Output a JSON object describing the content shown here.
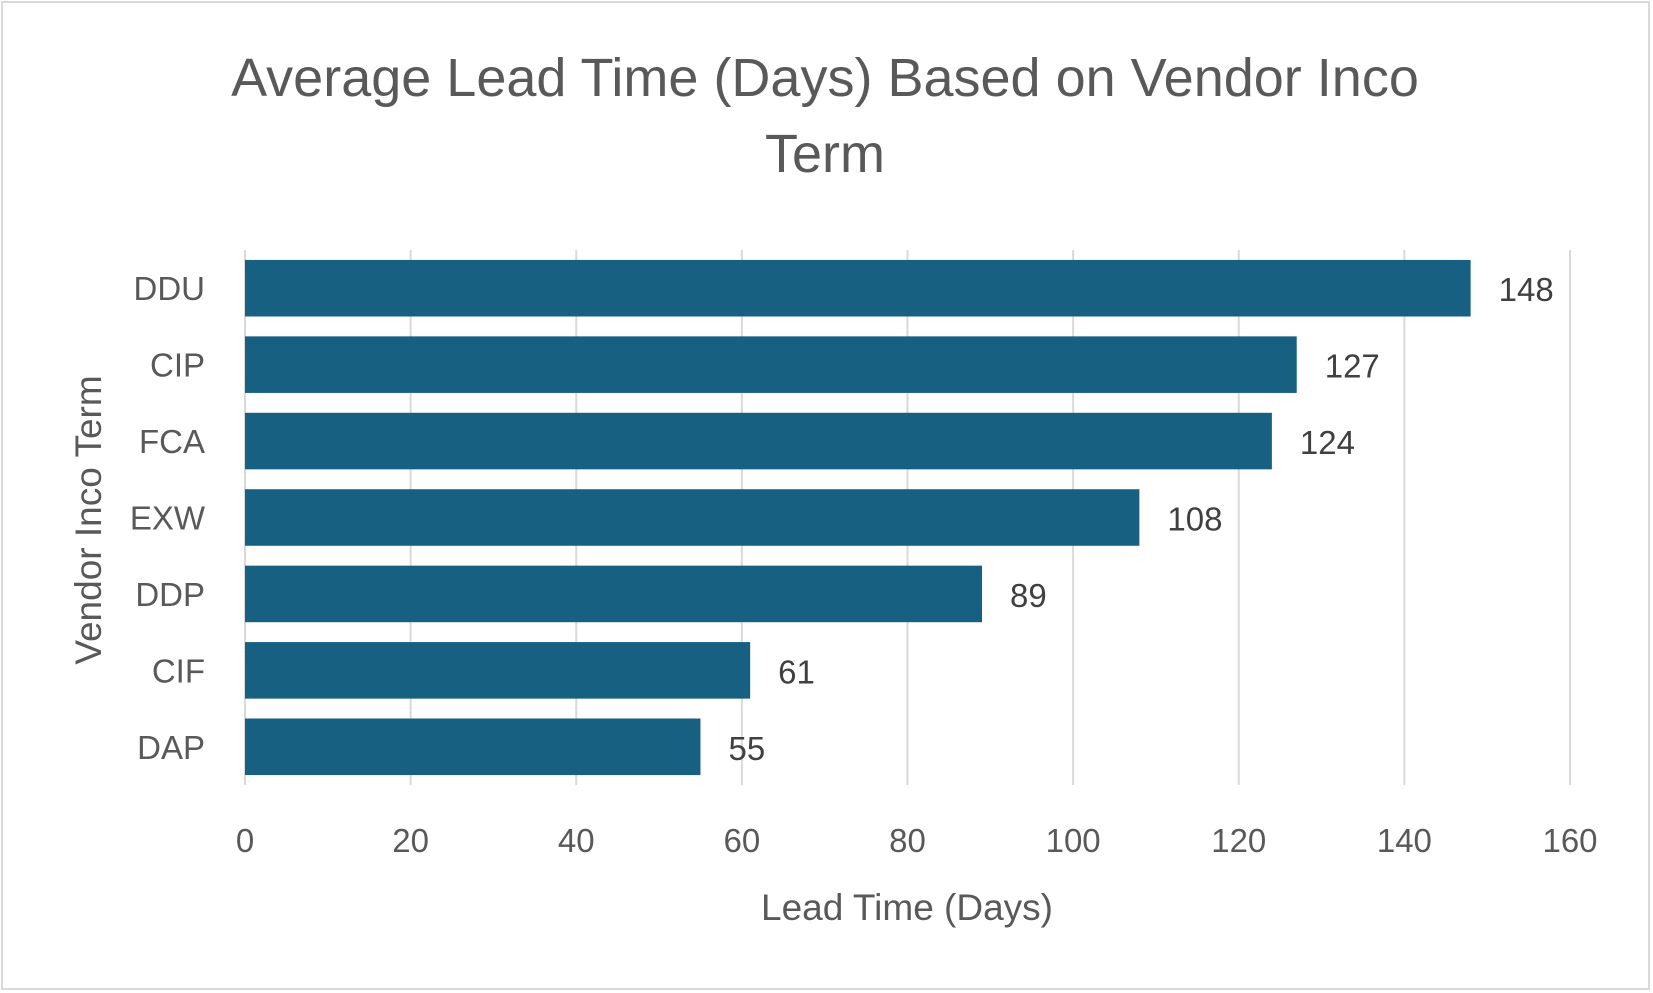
{
  "chart_data": {
    "type": "bar",
    "orientation": "horizontal",
    "title": "Average Lead Time (Days) Based on Vendor Inco Term",
    "xlabel": "Lead Time (Days)",
    "ylabel": "Vendor Inco Term",
    "categories": [
      "DDU",
      "CIP",
      "FCA",
      "EXW",
      "DDP",
      "CIF",
      "DAP"
    ],
    "values": [
      148,
      127,
      124,
      108,
      89,
      61,
      55
    ],
    "xlim": [
      0,
      160
    ],
    "xticks": [
      0,
      20,
      40,
      60,
      80,
      100,
      120,
      140,
      160
    ],
    "grid": "vertical",
    "legend": "none",
    "data_labels": true,
    "bar_color": "#176082",
    "grid_color": "#d9d9d9",
    "text_color": "#595959"
  }
}
